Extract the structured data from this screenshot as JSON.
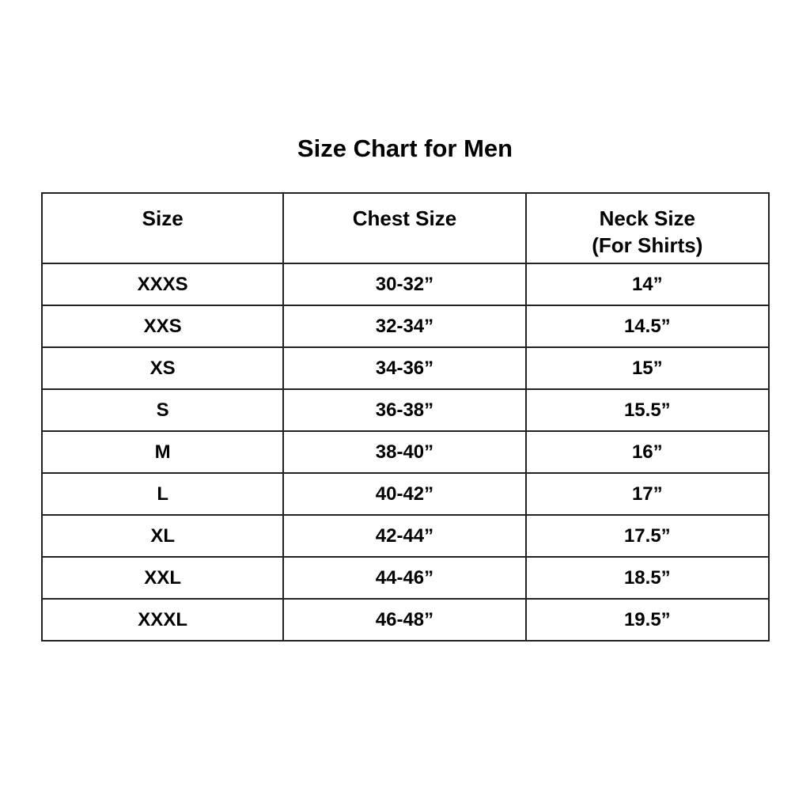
{
  "title": "Size Chart for Men",
  "table": {
    "headers": [
      "Size",
      "Chest Size",
      "Neck Size",
      "(For Shirts)"
    ],
    "rows": [
      [
        "XXXS",
        "30-32”",
        "14”"
      ],
      [
        "XXS",
        "32-34”",
        "14.5”"
      ],
      [
        "XS",
        "34-36”",
        "15”"
      ],
      [
        "S",
        "36-38”",
        "15.5”"
      ],
      [
        "M",
        "38-40”",
        "16”"
      ],
      [
        "L",
        "40-42”",
        "17”"
      ],
      [
        "XL",
        "42-44”",
        "17.5”"
      ],
      [
        "XXL",
        "44-46”",
        "18.5”"
      ],
      [
        "XXXL",
        "46-48”",
        "19.5”"
      ]
    ]
  }
}
